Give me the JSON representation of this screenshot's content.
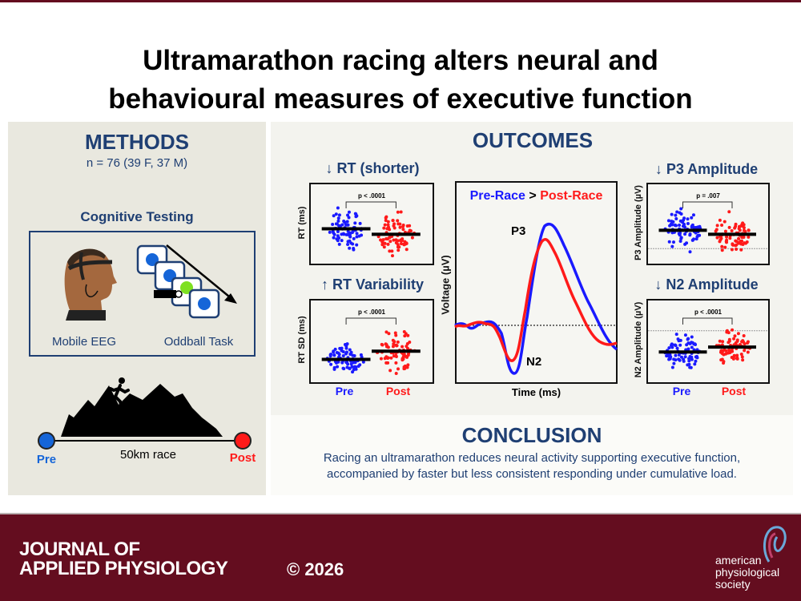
{
  "title": {
    "line1": "Ultramarathon racing alters neural and",
    "line2": "behavioural measures of executive function"
  },
  "methods": {
    "heading": "METHODS",
    "sample": "n = 76 (39 F, 37 M)",
    "cognitive_testing": "Cognitive Testing",
    "eeg_label": "Mobile EEG",
    "task_label": "Oddball Task",
    "race_label": "50km race",
    "pre_label": "Pre",
    "post_label": "Post"
  },
  "outcomes": {
    "heading": "OUTCOMES",
    "rt": {
      "title": "↓ RT (shorter)",
      "ylabel": "RT (ms)",
      "p": "p < .0001"
    },
    "rt_var": {
      "title": "↑ RT Variability",
      "ylabel": "RT SD (ms)",
      "p": "p < .0001"
    },
    "erp": {
      "legend_pre": "Pre-Race",
      "legend_gt": ">",
      "legend_post": "Post-Race",
      "ylabel": "Voltage (µV)",
      "xlabel": "Time (ms)",
      "p3_label": "P3",
      "n2_label": "N2"
    },
    "p3": {
      "title": "↓ P3 Amplitude",
      "ylabel": "P3 Amplitude (µV)",
      "p": "p = .007"
    },
    "n2": {
      "title": "↓ N2 Amplitude",
      "ylabel": "N2 Amplitude (µV)",
      "p": "p < .0001"
    },
    "group_pre": "Pre",
    "group_post": "Post"
  },
  "conclusion": {
    "heading": "CONCLUSION",
    "line1": "Racing an ultramarathon reduces neural activity supporting executive function,",
    "line2": "accompanied by faster but less consistent responding under cumulative load."
  },
  "footer": {
    "journal_line1": "JOURNAL OF",
    "journal_line2": "APPLIED PHYSIOLOGY",
    "copyright": "© 2026",
    "society_line1": "american",
    "society_line2": "physiological",
    "society_line3": "society"
  },
  "colors": {
    "pre": "#1a1aff",
    "post": "#ff1a1a",
    "navy": "#1f3f73",
    "footer": "#640d1f"
  }
}
